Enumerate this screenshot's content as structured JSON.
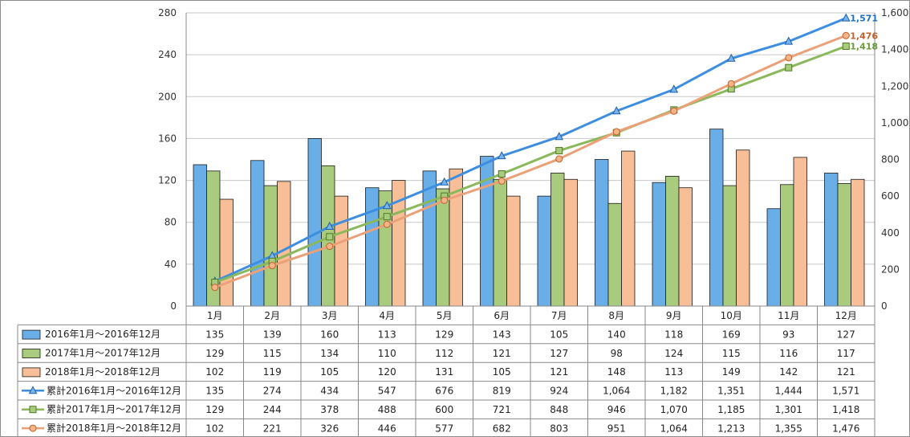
{
  "chart_data": {
    "type": "bar",
    "categories": [
      "1月",
      "2月",
      "3月",
      "4月",
      "5月",
      "6月",
      "7月",
      "8月",
      "9月",
      "10月",
      "11月",
      "12月"
    ],
    "y_left": {
      "range": [
        0,
        280
      ],
      "ticks": [
        "0",
        "40",
        "80",
        "120",
        "160",
        "200",
        "240",
        "280"
      ]
    },
    "y_right": {
      "range": [
        0,
        1600
      ],
      "ticks": [
        "0",
        "200",
        "400",
        "600",
        "800",
        "1,000",
        "1,200",
        "1,400",
        "1,600"
      ]
    },
    "grid": true,
    "legend": "data-table-left",
    "bar_series": [
      {
        "name": "2016年1月～2016年12月",
        "color": "#6aaee8",
        "values": [
          135,
          139,
          160,
          113,
          129,
          143,
          105,
          140,
          118,
          169,
          93,
          127
        ]
      },
      {
        "name": "2017年1月～2017年12月",
        "color": "#a9cb7e",
        "values": [
          129,
          115,
          134,
          110,
          112,
          121,
          127,
          98,
          124,
          115,
          116,
          117
        ]
      },
      {
        "name": "2018年1月～2018年12月",
        "color": "#f8be98",
        "values": [
          102,
          119,
          105,
          120,
          131,
          105,
          121,
          148,
          113,
          149,
          142,
          121
        ]
      }
    ],
    "line_series": [
      {
        "name": "累計2016年1月～2016年12月",
        "color": "#3d8ee0",
        "marker": "triangle",
        "values": [
          135,
          274,
          434,
          547,
          676,
          819,
          924,
          1064,
          1182,
          1351,
          1444,
          1571
        ]
      },
      {
        "name": "累計2017年1月～2017年12月",
        "color": "#8ab85a",
        "marker": "square",
        "values": [
          129,
          244,
          378,
          488,
          600,
          721,
          848,
          946,
          1070,
          1185,
          1301,
          1418
        ]
      },
      {
        "name": "累計2018年1月～2018年12月",
        "color": "#eba078",
        "marker": "circle",
        "values": [
          102,
          221,
          326,
          446,
          577,
          682,
          803,
          951,
          1064,
          1213,
          1355,
          1476
        ]
      }
    ],
    "end_labels": [
      {
        "text": "1,571",
        "color": "#1f6fc0"
      },
      {
        "text": "1,476",
        "color": "#c0602a"
      },
      {
        "text": "1,418",
        "color": "#6a9a3a"
      }
    ],
    "table_cells": [
      [
        "135",
        "139",
        "160",
        "113",
        "129",
        "143",
        "105",
        "140",
        "118",
        "169",
        "93",
        "127"
      ],
      [
        "129",
        "115",
        "134",
        "110",
        "112",
        "121",
        "127",
        "98",
        "124",
        "115",
        "116",
        "117"
      ],
      [
        "102",
        "119",
        "105",
        "120",
        "131",
        "105",
        "121",
        "148",
        "113",
        "149",
        "142",
        "121"
      ],
      [
        "135",
        "274",
        "434",
        "547",
        "676",
        "819",
        "924",
        "1,064",
        "1,182",
        "1,351",
        "1,444",
        "1,571"
      ],
      [
        "129",
        "244",
        "378",
        "488",
        "600",
        "721",
        "848",
        "946",
        "1,070",
        "1,185",
        "1,301",
        "1,418"
      ],
      [
        "102",
        "221",
        "326",
        "446",
        "577",
        "682",
        "803",
        "951",
        "1,064",
        "1,213",
        "1,355",
        "1,476"
      ]
    ]
  }
}
